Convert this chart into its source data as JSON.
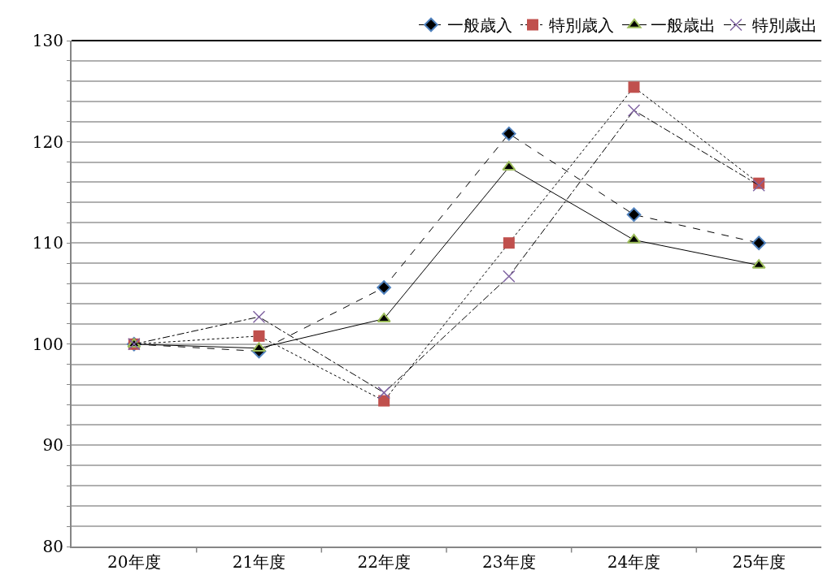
{
  "chart_data": {
    "type": "line",
    "categories": [
      "20年度",
      "21年度",
      "22年度",
      "23年度",
      "24年度",
      "25年度"
    ],
    "series": [
      {
        "name": "一般歳入",
        "color": "#4f81bd",
        "marker": "diamond",
        "line_style": "dashed",
        "values": [
          100,
          99.3,
          105.6,
          120.8,
          112.8,
          110.0
        ]
      },
      {
        "name": "特別歳入",
        "color": "#c0504d",
        "marker": "square",
        "line_style": "dotted",
        "values": [
          100,
          100.8,
          94.4,
          110.0,
          125.4,
          115.9
        ]
      },
      {
        "name": "一般歳出",
        "color": "#9bbb59",
        "marker": "triangle",
        "line_style": "solid",
        "values": [
          100,
          99.6,
          102.5,
          117.5,
          110.3,
          107.8
        ]
      },
      {
        "name": "特別歳出",
        "color": "#8064a2",
        "marker": "cross",
        "line_style": "dashdot",
        "values": [
          100,
          102.7,
          95.2,
          106.7,
          123.1,
          115.7
        ]
      }
    ],
    "ylim": [
      80,
      130
    ],
    "yticks": [
      80,
      {
        "value": 82,
        "label": null
      },
      {
        "value": 84,
        "label": null
      },
      {
        "value": 86,
        "label": null
      },
      {
        "value": 88,
        "label": null
      },
      90,
      {
        "value": 92,
        "label": null
      },
      {
        "value": 94,
        "label": null
      },
      {
        "value": 96,
        "label": null
      },
      {
        "value": 98,
        "label": null
      },
      100,
      {
        "value": 102,
        "label": null
      },
      {
        "value": 104,
        "label": null
      },
      {
        "value": 106,
        "label": null
      },
      {
        "value": 108,
        "label": null
      },
      110,
      {
        "value": 112,
        "label": null
      },
      {
        "value": 114,
        "label": null
      },
      {
        "value": 116,
        "label": null
      },
      {
        "value": 118,
        "label": null
      },
      120,
      {
        "value": 122,
        "label": null
      },
      {
        "value": 124,
        "label": null
      },
      {
        "value": 126,
        "label": null
      },
      {
        "value": 128,
        "label": null
      },
      130
    ],
    "grid": "y",
    "legend": "top"
  }
}
